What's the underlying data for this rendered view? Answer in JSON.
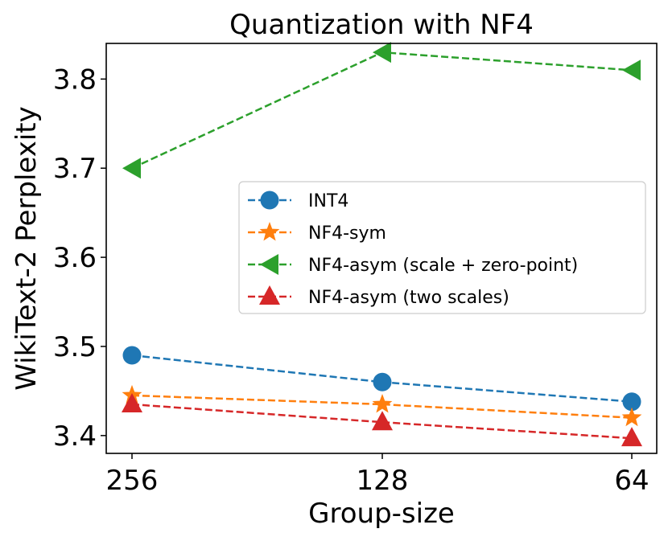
{
  "chart_data": {
    "type": "line",
    "title": "Quantization with NF4",
    "xlabel": "Group-size",
    "ylabel": "WikiText-2 Perplexity",
    "categories": [
      "256",
      "128",
      "64"
    ],
    "ylim": [
      3.38,
      3.84
    ],
    "yticks": [
      "3.4",
      "3.5",
      "3.6",
      "3.7",
      "3.8"
    ],
    "ytick_values": [
      3.4,
      3.5,
      3.6,
      3.7,
      3.8
    ],
    "grid": false,
    "legend_position": "center-right",
    "series": [
      {
        "name": "INT4",
        "values": [
          3.49,
          3.46,
          3.438
        ],
        "color": "#1f77b4",
        "marker": "circle"
      },
      {
        "name": "NF4-sym",
        "values": [
          3.445,
          3.435,
          3.42
        ],
        "color": "#ff7f0e",
        "marker": "star"
      },
      {
        "name": "NF4-asym (scale + zero-point)",
        "values": [
          3.7,
          3.83,
          3.81
        ],
        "color": "#2ca02c",
        "marker": "triangle-left"
      },
      {
        "name": "NF4-asym (two scales)",
        "values": [
          3.435,
          3.415,
          3.397
        ],
        "color": "#d62728",
        "marker": "triangle-up"
      }
    ]
  }
}
